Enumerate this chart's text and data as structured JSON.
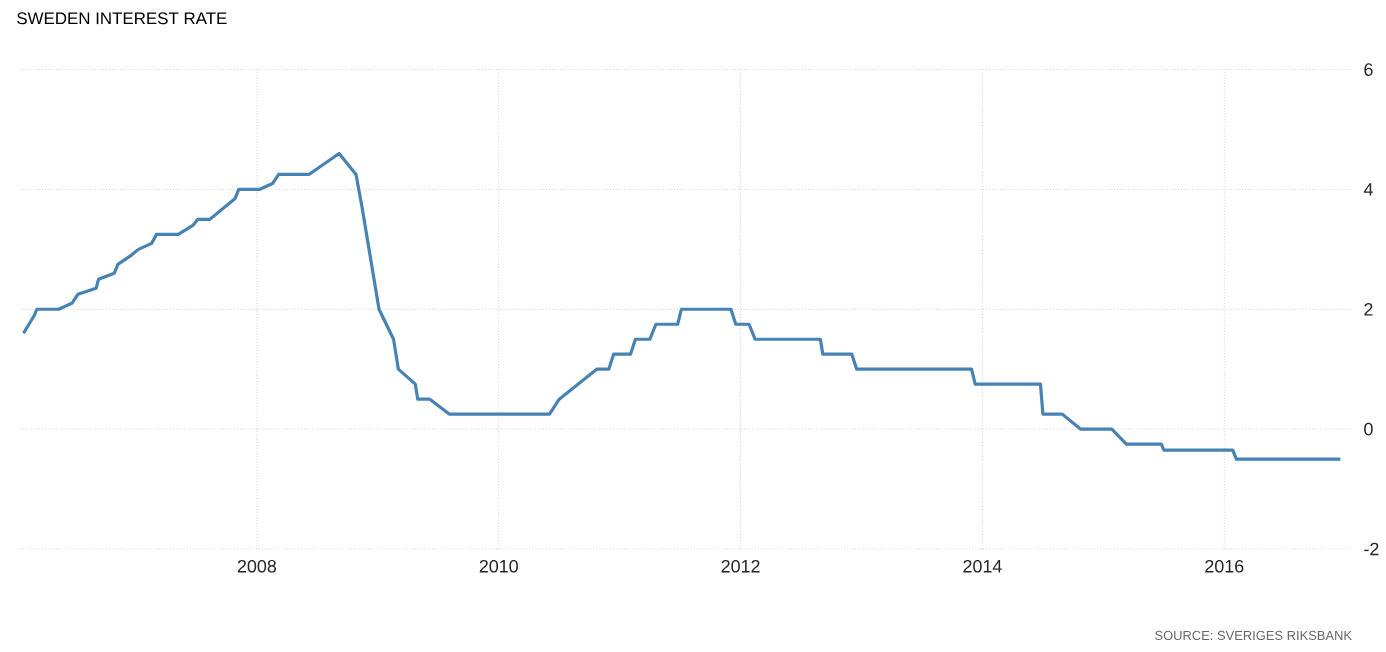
{
  "chart_data": {
    "type": "line",
    "title": "SWEDEN INTEREST RATE",
    "annotations": [
      "SOURCE: SVERIGES RIKSBANK"
    ],
    "x": [
      2006.07,
      2006.16,
      2006.18,
      2006.36,
      2006.47,
      2006.52,
      2006.67,
      2006.69,
      2006.82,
      2006.85,
      2006.96,
      2007.02,
      2007.13,
      2007.17,
      2007.35,
      2007.47,
      2007.51,
      2007.61,
      2007.82,
      2007.85,
      2008.02,
      2008.13,
      2008.18,
      2008.43,
      2008.68,
      2008.82,
      2008.87,
      2009.01,
      2009.13,
      2009.17,
      2009.31,
      2009.33,
      2009.43,
      2009.59,
      2010.42,
      2010.5,
      2010.81,
      2010.91,
      2010.95,
      2011.09,
      2011.13,
      2011.25,
      2011.3,
      2011.48,
      2011.51,
      2011.92,
      2011.96,
      2012.07,
      2012.12,
      2012.66,
      2012.68,
      2012.92,
      2012.96,
      2013.91,
      2013.94,
      2014.48,
      2014.5,
      2014.66,
      2014.81,
      2015.07,
      2015.19,
      2015.48,
      2015.5,
      2016.07,
      2016.1,
      2016.96
    ],
    "values": [
      1.6,
      1.9,
      2.0,
      2.0,
      2.1,
      2.25,
      2.35,
      2.5,
      2.6,
      2.75,
      2.9,
      3.0,
      3.1,
      3.25,
      3.25,
      3.4,
      3.5,
      3.5,
      3.85,
      4.0,
      4.0,
      4.1,
      4.25,
      4.25,
      4.6,
      4.25,
      3.7,
      2.0,
      1.5,
      1.0,
      0.75,
      0.5,
      0.5,
      0.25,
      0.25,
      0.5,
      1.0,
      1.0,
      1.25,
      1.25,
      1.5,
      1.5,
      1.75,
      1.75,
      2.0,
      2.0,
      1.75,
      1.75,
      1.5,
      1.5,
      1.25,
      1.25,
      1.0,
      1.0,
      0.75,
      0.75,
      0.25,
      0.25,
      0.0,
      0.0,
      -0.25,
      -0.25,
      -0.35,
      -0.35,
      -0.5,
      -0.5
    ],
    "color": "#4682b4",
    "xlim": [
      2006.04,
      2017.06
    ],
    "ylim": [
      -2,
      6
    ],
    "xticks": [
      2008,
      2010,
      2012,
      2014,
      2016
    ],
    "yticks": [
      -2,
      0,
      2,
      4,
      6
    ],
    "grid": true
  }
}
